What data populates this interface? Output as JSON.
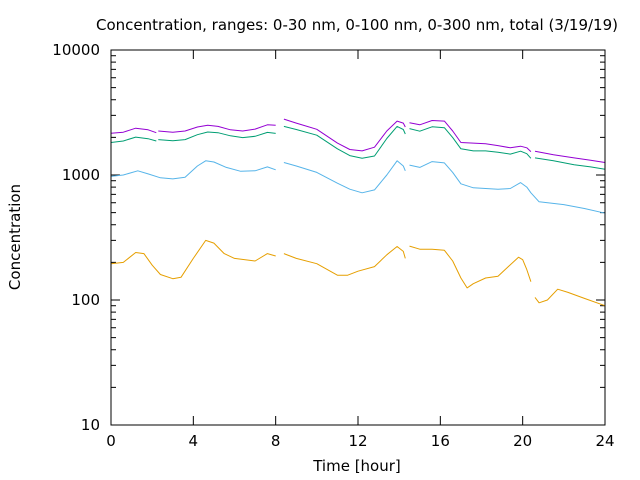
{
  "chart_data": {
    "type": "line",
    "title": "Concentration, ranges: 0-30 nm, 0-100 nm, 0-300 nm, total (3/19/19)",
    "xlabel": "Time [hour]",
    "ylabel": "Concentration",
    "xlim": [
      0,
      24
    ],
    "ylim": [
      10,
      10000
    ],
    "yscale": "log",
    "xticks": [
      0,
      4,
      8,
      12,
      16,
      20,
      24
    ],
    "xtick_labels": [
      "0",
      "4",
      "8",
      "12",
      "16",
      "20",
      "24"
    ],
    "yticks": [
      10,
      100,
      1000,
      10000
    ],
    "ytick_labels": [
      "10",
      "100",
      "1000",
      "10000"
    ],
    "grid": false,
    "legend": "none",
    "series": [
      {
        "color": "#e69f00",
        "segments": [
          [
            [
              0,
              195
            ],
            [
              0.6,
              200
            ],
            [
              1.2,
              240
            ],
            [
              1.6,
              235
            ],
            [
              2.0,
              190
            ],
            [
              2.4,
              160
            ],
            [
              3.0,
              148
            ],
            [
              3.4,
              152
            ],
            [
              4.0,
              215
            ],
            [
              4.6,
              300
            ],
            [
              5.0,
              285
            ],
            [
              5.5,
              235
            ],
            [
              6.0,
              215
            ],
            [
              7.0,
              205
            ],
            [
              7.6,
              235
            ],
            [
              8.0,
              225
            ]
          ],
          [
            [
              8.4,
              235
            ],
            [
              9.0,
              215
            ],
            [
              10.0,
              195
            ],
            [
              11.0,
              158
            ],
            [
              11.5,
              158
            ],
            [
              12.0,
              170
            ],
            [
              12.8,
              185
            ],
            [
              13.4,
              230
            ],
            [
              13.9,
              268
            ],
            [
              14.2,
              245
            ],
            [
              14.3,
              215
            ]
          ],
          [
            [
              14.5,
              270
            ],
            [
              15.0,
              255
            ],
            [
              15.6,
              255
            ],
            [
              16.2,
              250
            ],
            [
              16.6,
              205
            ],
            [
              17.0,
              150
            ],
            [
              17.3,
              125
            ],
            [
              17.6,
              135
            ],
            [
              18.2,
              150
            ],
            [
              18.8,
              155
            ],
            [
              19.3,
              185
            ],
            [
              19.8,
              220
            ],
            [
              20.0,
              210
            ],
            [
              20.2,
              175
            ],
            [
              20.4,
              140
            ]
          ],
          [
            [
              20.6,
              105
            ],
            [
              20.8,
              95
            ],
            [
              21.2,
              100
            ],
            [
              21.7,
              122
            ],
            [
              22.2,
              115
            ],
            [
              23.0,
              103
            ],
            [
              24,
              90
            ]
          ]
        ]
      },
      {
        "color": "#56b4e9",
        "segments": [
          [
            [
              0,
              975
            ],
            [
              0.6,
              1000
            ],
            [
              1.3,
              1080
            ],
            [
              1.8,
              1020
            ],
            [
              2.4,
              950
            ],
            [
              3.0,
              930
            ],
            [
              3.6,
              960
            ],
            [
              4.2,
              1180
            ],
            [
              4.6,
              1300
            ],
            [
              5.0,
              1270
            ],
            [
              5.6,
              1150
            ],
            [
              6.3,
              1070
            ],
            [
              7.0,
              1080
            ],
            [
              7.6,
              1160
            ],
            [
              8.0,
              1100
            ]
          ],
          [
            [
              8.4,
              1260
            ],
            [
              9.0,
              1180
            ],
            [
              10.0,
              1050
            ],
            [
              11.0,
              860
            ],
            [
              11.6,
              770
            ],
            [
              12.2,
              720
            ],
            [
              12.8,
              760
            ],
            [
              13.4,
              1000
            ],
            [
              13.9,
              1300
            ],
            [
              14.2,
              1180
            ],
            [
              14.3,
              1080
            ]
          ],
          [
            [
              14.5,
              1200
            ],
            [
              15.0,
              1150
            ],
            [
              15.6,
              1280
            ],
            [
              16.2,
              1250
            ],
            [
              16.6,
              1050
            ],
            [
              17.0,
              850
            ],
            [
              17.6,
              790
            ],
            [
              18.2,
              780
            ],
            [
              18.8,
              770
            ],
            [
              19.4,
              780
            ],
            [
              19.9,
              870
            ],
            [
              20.2,
              800
            ],
            [
              20.4,
              720
            ],
            [
              20.8,
              610
            ],
            [
              22.0,
              580
            ],
            [
              23.0,
              540
            ],
            [
              24,
              495
            ]
          ]
        ]
      },
      {
        "color": "#009e73",
        "segments": [
          [
            [
              0,
              1820
            ],
            [
              0.6,
              1870
            ],
            [
              1.2,
              2010
            ],
            [
              1.8,
              1950
            ],
            [
              2.2,
              1870
            ]
          ],
          [
            [
              2.3,
              1920
            ],
            [
              3.0,
              1880
            ],
            [
              3.6,
              1920
            ],
            [
              4.2,
              2100
            ],
            [
              4.7,
              2210
            ],
            [
              5.2,
              2180
            ],
            [
              5.8,
              2060
            ],
            [
              6.4,
              1990
            ],
            [
              7.0,
              2040
            ],
            [
              7.6,
              2190
            ],
            [
              8.0,
              2150
            ]
          ],
          [
            [
              8.4,
              2450
            ],
            [
              9.0,
              2310
            ],
            [
              10.0,
              2080
            ],
            [
              11.0,
              1620
            ],
            [
              11.6,
              1430
            ],
            [
              12.2,
              1360
            ],
            [
              12.8,
              1420
            ],
            [
              13.4,
              1960
            ],
            [
              13.9,
              2450
            ],
            [
              14.2,
              2310
            ],
            [
              14.3,
              2130
            ]
          ],
          [
            [
              14.5,
              2350
            ],
            [
              15.0,
              2240
            ],
            [
              15.6,
              2430
            ],
            [
              16.2,
              2390
            ],
            [
              16.6,
              1990
            ],
            [
              17.0,
              1620
            ],
            [
              17.6,
              1560
            ],
            [
              18.2,
              1560
            ],
            [
              18.8,
              1520
            ],
            [
              19.4,
              1470
            ],
            [
              19.9,
              1550
            ],
            [
              20.2,
              1480
            ],
            [
              20.4,
              1360
            ]
          ],
          [
            [
              20.6,
              1370
            ],
            [
              21.5,
              1300
            ],
            [
              22.5,
              1210
            ],
            [
              23.3,
              1160
            ],
            [
              24,
              1110
            ]
          ]
        ]
      },
      {
        "color": "#9400d3",
        "segments": [
          [
            [
              0,
              2160
            ],
            [
              0.6,
              2200
            ],
            [
              1.2,
              2370
            ],
            [
              1.8,
              2300
            ],
            [
              2.2,
              2180
            ]
          ],
          [
            [
              2.3,
              2250
            ],
            [
              3.0,
              2200
            ],
            [
              3.6,
              2250
            ],
            [
              4.2,
              2420
            ],
            [
              4.7,
              2500
            ],
            [
              5.2,
              2450
            ],
            [
              5.8,
              2300
            ],
            [
              6.4,
              2250
            ],
            [
              7.0,
              2330
            ],
            [
              7.6,
              2520
            ],
            [
              8.0,
              2500
            ]
          ],
          [
            [
              8.4,
              2800
            ],
            [
              9.0,
              2600
            ],
            [
              10.0,
              2320
            ],
            [
              11.0,
              1800
            ],
            [
              11.6,
              1600
            ],
            [
              12.2,
              1560
            ],
            [
              12.8,
              1670
            ],
            [
              13.4,
              2250
            ],
            [
              13.9,
              2700
            ],
            [
              14.2,
              2600
            ],
            [
              14.3,
              2420
            ]
          ],
          [
            [
              14.5,
              2620
            ],
            [
              15.0,
              2520
            ],
            [
              15.6,
              2730
            ],
            [
              16.2,
              2700
            ],
            [
              16.6,
              2250
            ],
            [
              17.0,
              1820
            ],
            [
              17.6,
              1800
            ],
            [
              18.2,
              1780
            ],
            [
              18.8,
              1720
            ],
            [
              19.4,
              1650
            ],
            [
              19.9,
              1700
            ],
            [
              20.2,
              1650
            ],
            [
              20.4,
              1540
            ]
          ],
          [
            [
              20.6,
              1550
            ],
            [
              21.5,
              1450
            ],
            [
              22.5,
              1370
            ],
            [
              23.3,
              1310
            ],
            [
              24,
              1260
            ]
          ]
        ]
      }
    ]
  }
}
